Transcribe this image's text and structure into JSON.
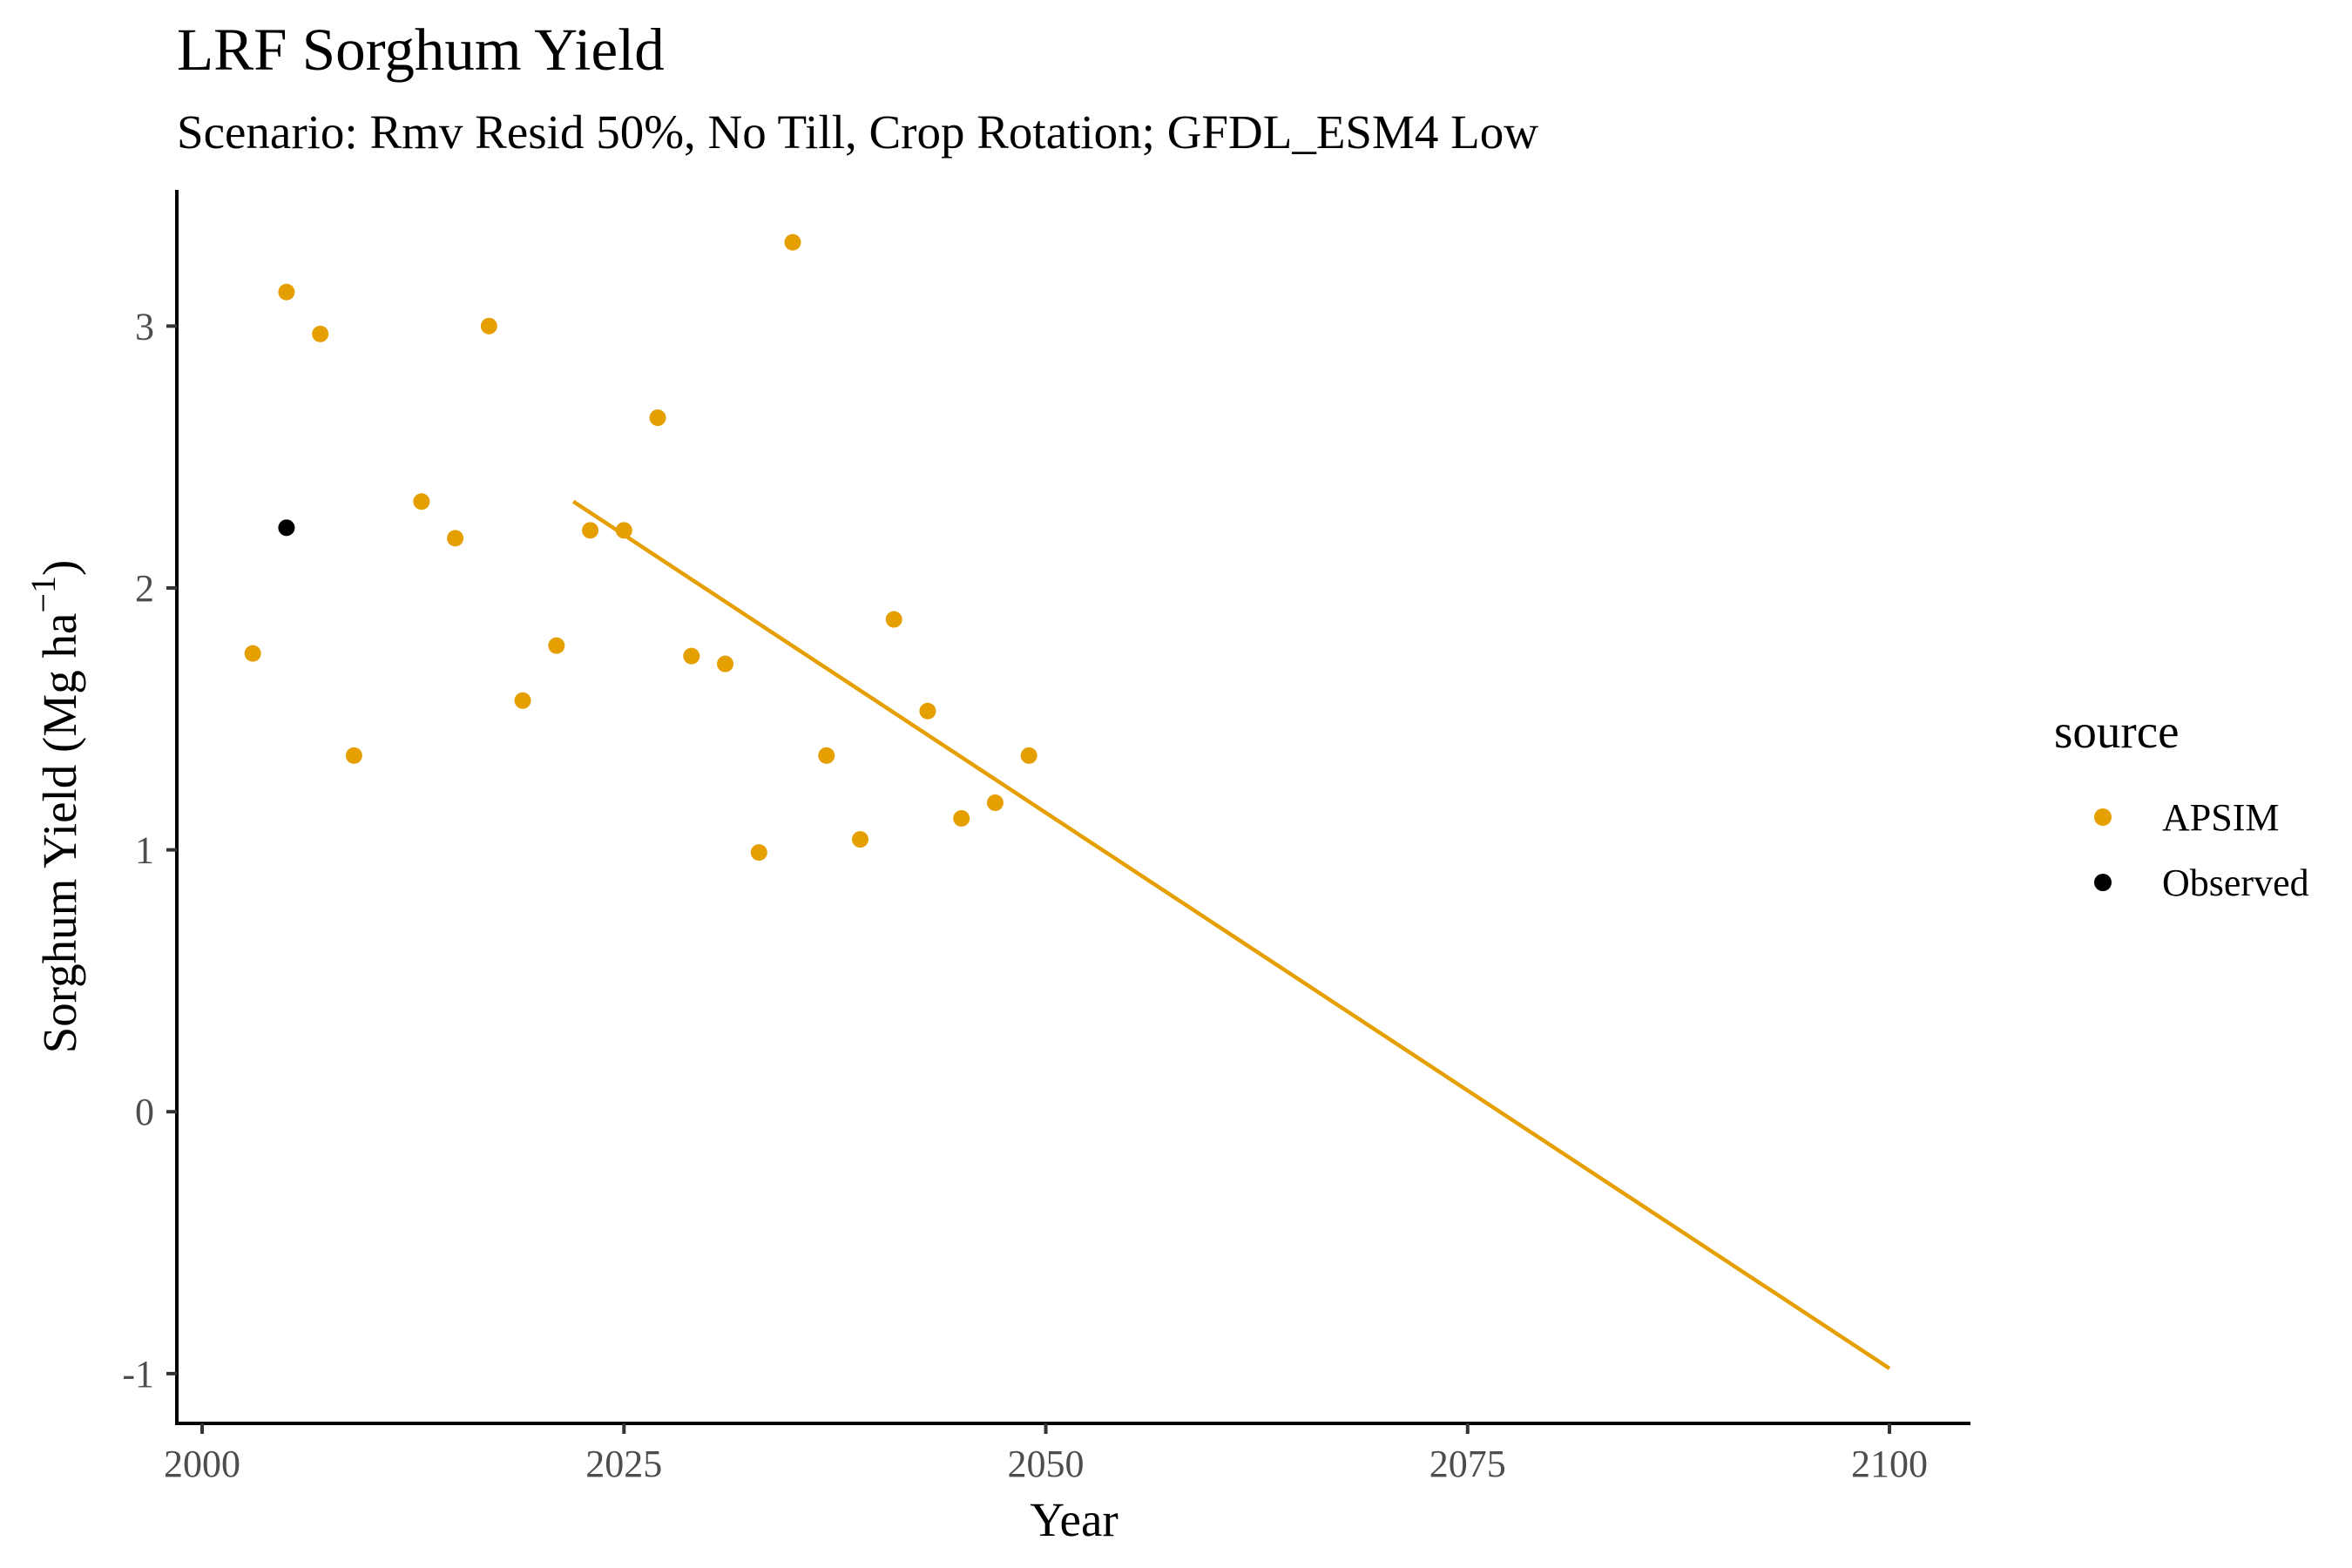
{
  "chart_data": {
    "type": "scatter",
    "title": "LRF Sorghum Yield",
    "subtitle": "Scenario: Rmv Resid 50%, No Till, Crop Rotation; GFDL_ESM4 Low",
    "xlabel": "Year",
    "ylabel_main": "Sorghum Yield (Mg ha",
    "ylabel_sup": "−1",
    "ylabel_close": ")",
    "xlim": [
      1998.5,
      2104.8
    ],
    "ylim": [
      -1.19,
      3.52
    ],
    "x_ticks": [
      2000,
      2025,
      2050,
      2075,
      2100
    ],
    "y_ticks": [
      -1,
      0,
      1,
      2,
      3
    ],
    "grid": false,
    "legend": {
      "title": "source",
      "position": "right"
    },
    "series": [
      {
        "name": "APSIM",
        "color": "#E69F00",
        "points": [
          {
            "x": 2003,
            "y": 1.75
          },
          {
            "x": 2005,
            "y": 3.13
          },
          {
            "x": 2007,
            "y": 2.97
          },
          {
            "x": 2009,
            "y": 1.36
          },
          {
            "x": 2013,
            "y": 2.33
          },
          {
            "x": 2015,
            "y": 2.19
          },
          {
            "x": 2017,
            "y": 3.0
          },
          {
            "x": 2019,
            "y": 1.57
          },
          {
            "x": 2021,
            "y": 1.78
          },
          {
            "x": 2023,
            "y": 2.22
          },
          {
            "x": 2025,
            "y": 2.22
          },
          {
            "x": 2027,
            "y": 2.65
          },
          {
            "x": 2029,
            "y": 1.74
          },
          {
            "x": 2031,
            "y": 1.71
          },
          {
            "x": 2033,
            "y": 0.99
          },
          {
            "x": 2035,
            "y": 3.32
          },
          {
            "x": 2037,
            "y": 1.36
          },
          {
            "x": 2039,
            "y": 1.04
          },
          {
            "x": 2041,
            "y": 1.88
          },
          {
            "x": 2043,
            "y": 1.53
          },
          {
            "x": 2045,
            "y": 1.12
          },
          {
            "x": 2047,
            "y": 1.18
          },
          {
            "x": 2049,
            "y": 1.36
          }
        ]
      },
      {
        "name": "Observed",
        "color": "#000000",
        "points": [
          {
            "x": 2005,
            "y": 2.23
          }
        ]
      }
    ],
    "trend_line": {
      "color": "#E69F00",
      "x": [
        2022,
        2100
      ],
      "y": [
        2.33,
        -0.98
      ]
    }
  }
}
